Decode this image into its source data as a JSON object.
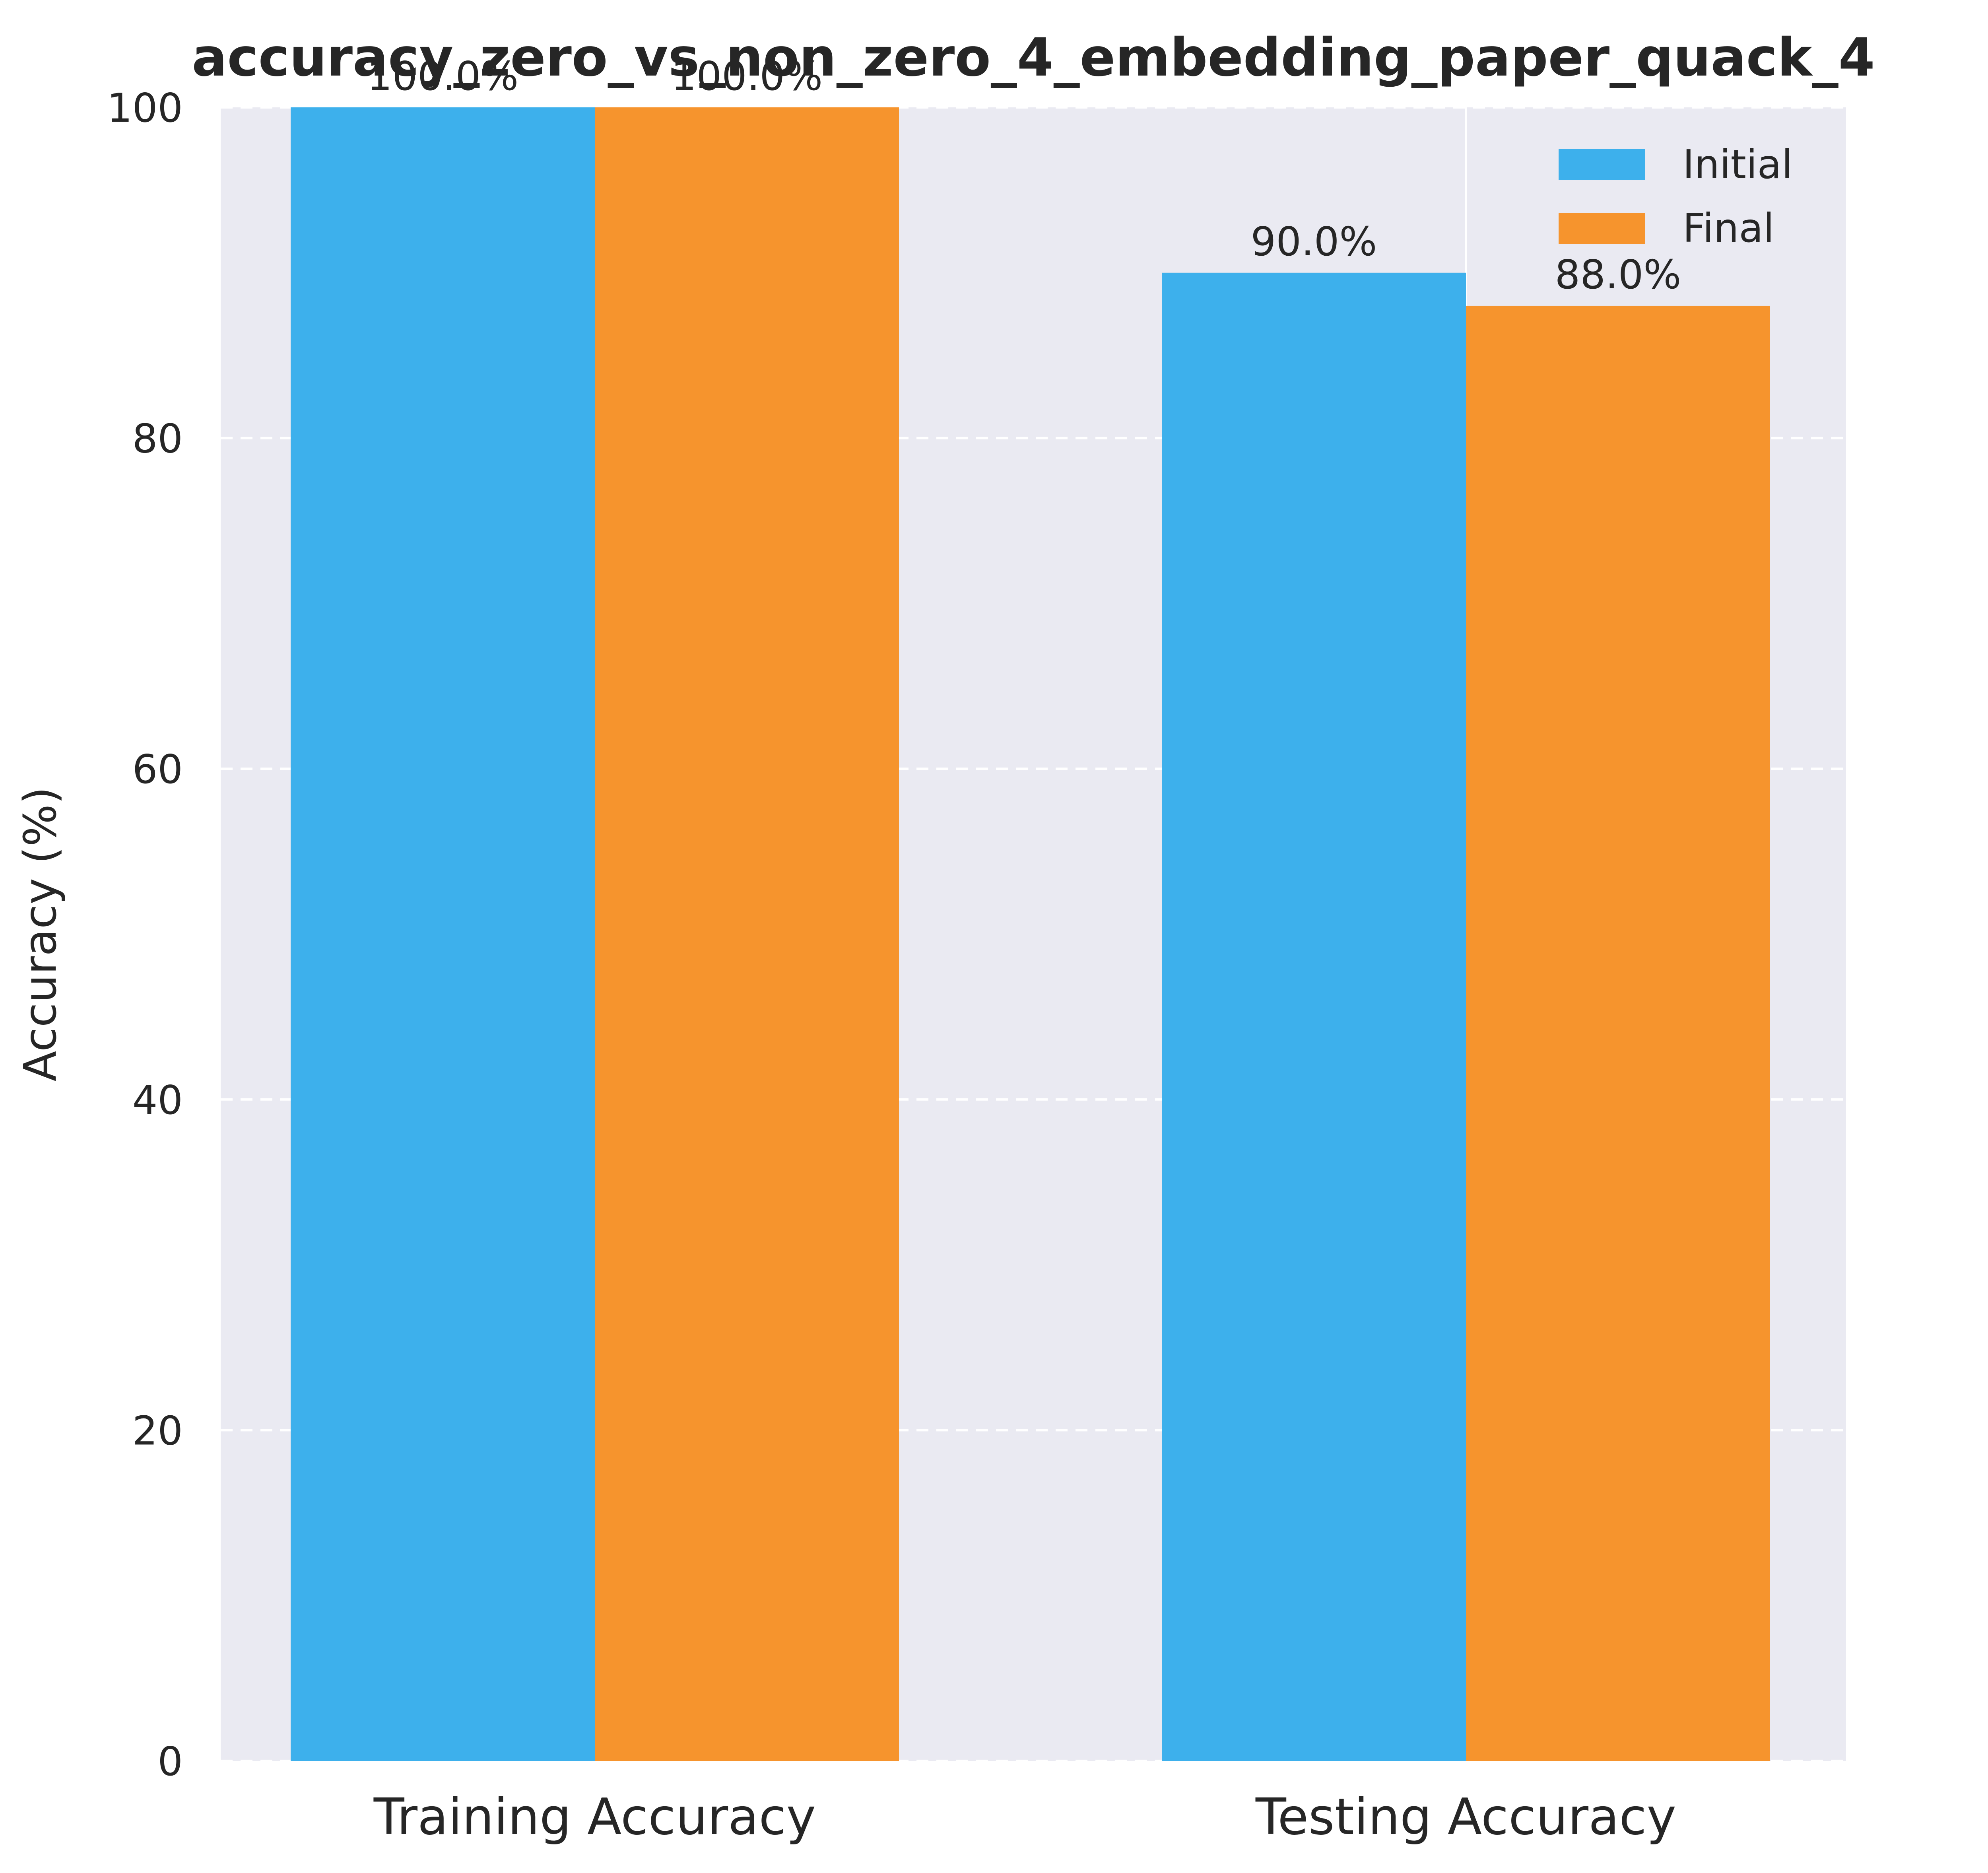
{
  "chart_data": {
    "type": "bar",
    "title": "accuracy_zero_vs_non_zero_4_embedding_paper_quack_4",
    "xlabel": "",
    "ylabel": "Accuracy (%)",
    "ylim": [
      0,
      100
    ],
    "yticks": [
      0,
      20,
      40,
      60,
      80,
      100
    ],
    "categories": [
      "Training Accuracy",
      "Testing Accuracy"
    ],
    "series": [
      {
        "name": "Initial",
        "color": "#3DB0EC",
        "values": [
          100.0,
          90.0
        ],
        "labels": [
          "100.0%",
          "90.0%"
        ]
      },
      {
        "name": "Final",
        "color": "#F6942D",
        "values": [
          100.0,
          88.0
        ],
        "labels": [
          "100.0%",
          "88.0%"
        ]
      }
    ],
    "grid": true,
    "legend_position": "top-right",
    "colors": {
      "plot_background": "#EAEAF2",
      "grid": "#FFFFFF",
      "text": "#262626"
    }
  }
}
